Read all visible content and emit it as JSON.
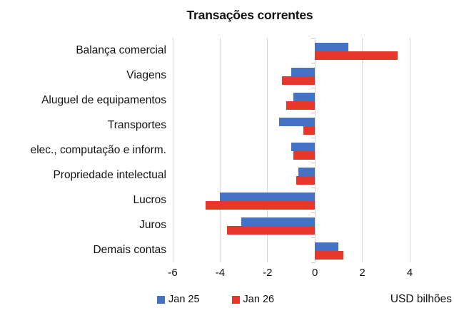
{
  "chart_data": {
    "type": "bar",
    "orientation": "horizontal",
    "title": "Transações correntes",
    "xlabel": "USD bilhões",
    "xlim": [
      -6,
      4
    ],
    "xticks": [
      -6,
      -4,
      -2,
      0,
      2,
      4
    ],
    "grid": true,
    "legend_position": "bottom",
    "categories": [
      "Balança comercial",
      "Viagens",
      "Aluguel de equipamentos",
      "Transportes",
      "elec., computação e inform.",
      "Propriedade intelectual",
      "Lucros",
      "Juros",
      "Demais contas"
    ],
    "series": [
      {
        "name": "Jan 25",
        "color": "#4472c4",
        "values": [
          1.4,
          -1.0,
          -0.9,
          -1.5,
          -1.0,
          -0.7,
          -4.0,
          -3.1,
          1.0
        ]
      },
      {
        "name": "Jan 26",
        "color": "#e8362a",
        "values": [
          3.5,
          -1.4,
          -1.2,
          -0.5,
          -0.9,
          -0.8,
          -4.6,
          -3.7,
          1.2
        ]
      }
    ]
  },
  "colors": {
    "gridline": "#d9d9d9",
    "category_axis_tick": "#c6c6c6",
    "text": "#111111",
    "background": "#ffffff"
  }
}
